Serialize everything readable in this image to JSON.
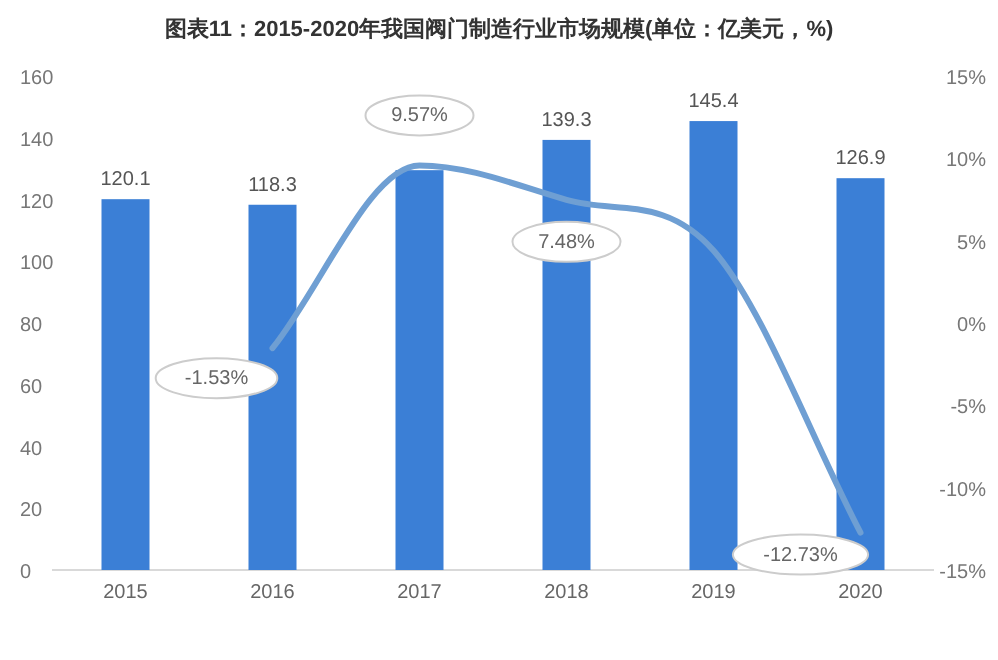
{
  "chart_data": {
    "type": "bar",
    "title": "图表11：2015-2020年我国阀门制造行业市场规模(单位：亿美元，%)",
    "categories": [
      "2015",
      "2016",
      "2017",
      "2018",
      "2019",
      "2020"
    ],
    "series": [
      {
        "color": "#3b7fd6",
        "values": [
          120.1,
          118.3,
          129.5,
          139.3,
          145.4,
          126.9
        ],
        "value_labels": [
          "120.1",
          "118.3",
          null,
          "139.3",
          "145.4",
          "126.9"
        ]
      },
      {
        "type": "line",
        "axis": "y2",
        "color": "#6f9fd3",
        "values": [
          null,
          -1.53,
          9.57,
          7.48,
          4.4,
          -12.73
        ],
        "value_labels": [
          null,
          "-1.53%",
          "9.57%",
          "7.48%",
          null,
          "-12.73%"
        ]
      }
    ],
    "ylim": [
      0,
      160
    ],
    "yticks": [
      0,
      20,
      40,
      60,
      80,
      100,
      120,
      140,
      160
    ],
    "y2lim": [
      -15,
      15
    ],
    "y2ticks": [
      {
        "value": -15,
        "label": "-15%"
      },
      {
        "value": -10,
        "label": "-10%"
      },
      {
        "value": -5,
        "label": "-5%"
      },
      {
        "value": 0,
        "label": "0%"
      },
      {
        "value": 5,
        "label": "5%"
      },
      {
        "value": 10,
        "label": "10%"
      },
      {
        "value": 15,
        "label": "15%"
      }
    ],
    "grid": false,
    "marker": "none",
    "line_style": "solid"
  }
}
